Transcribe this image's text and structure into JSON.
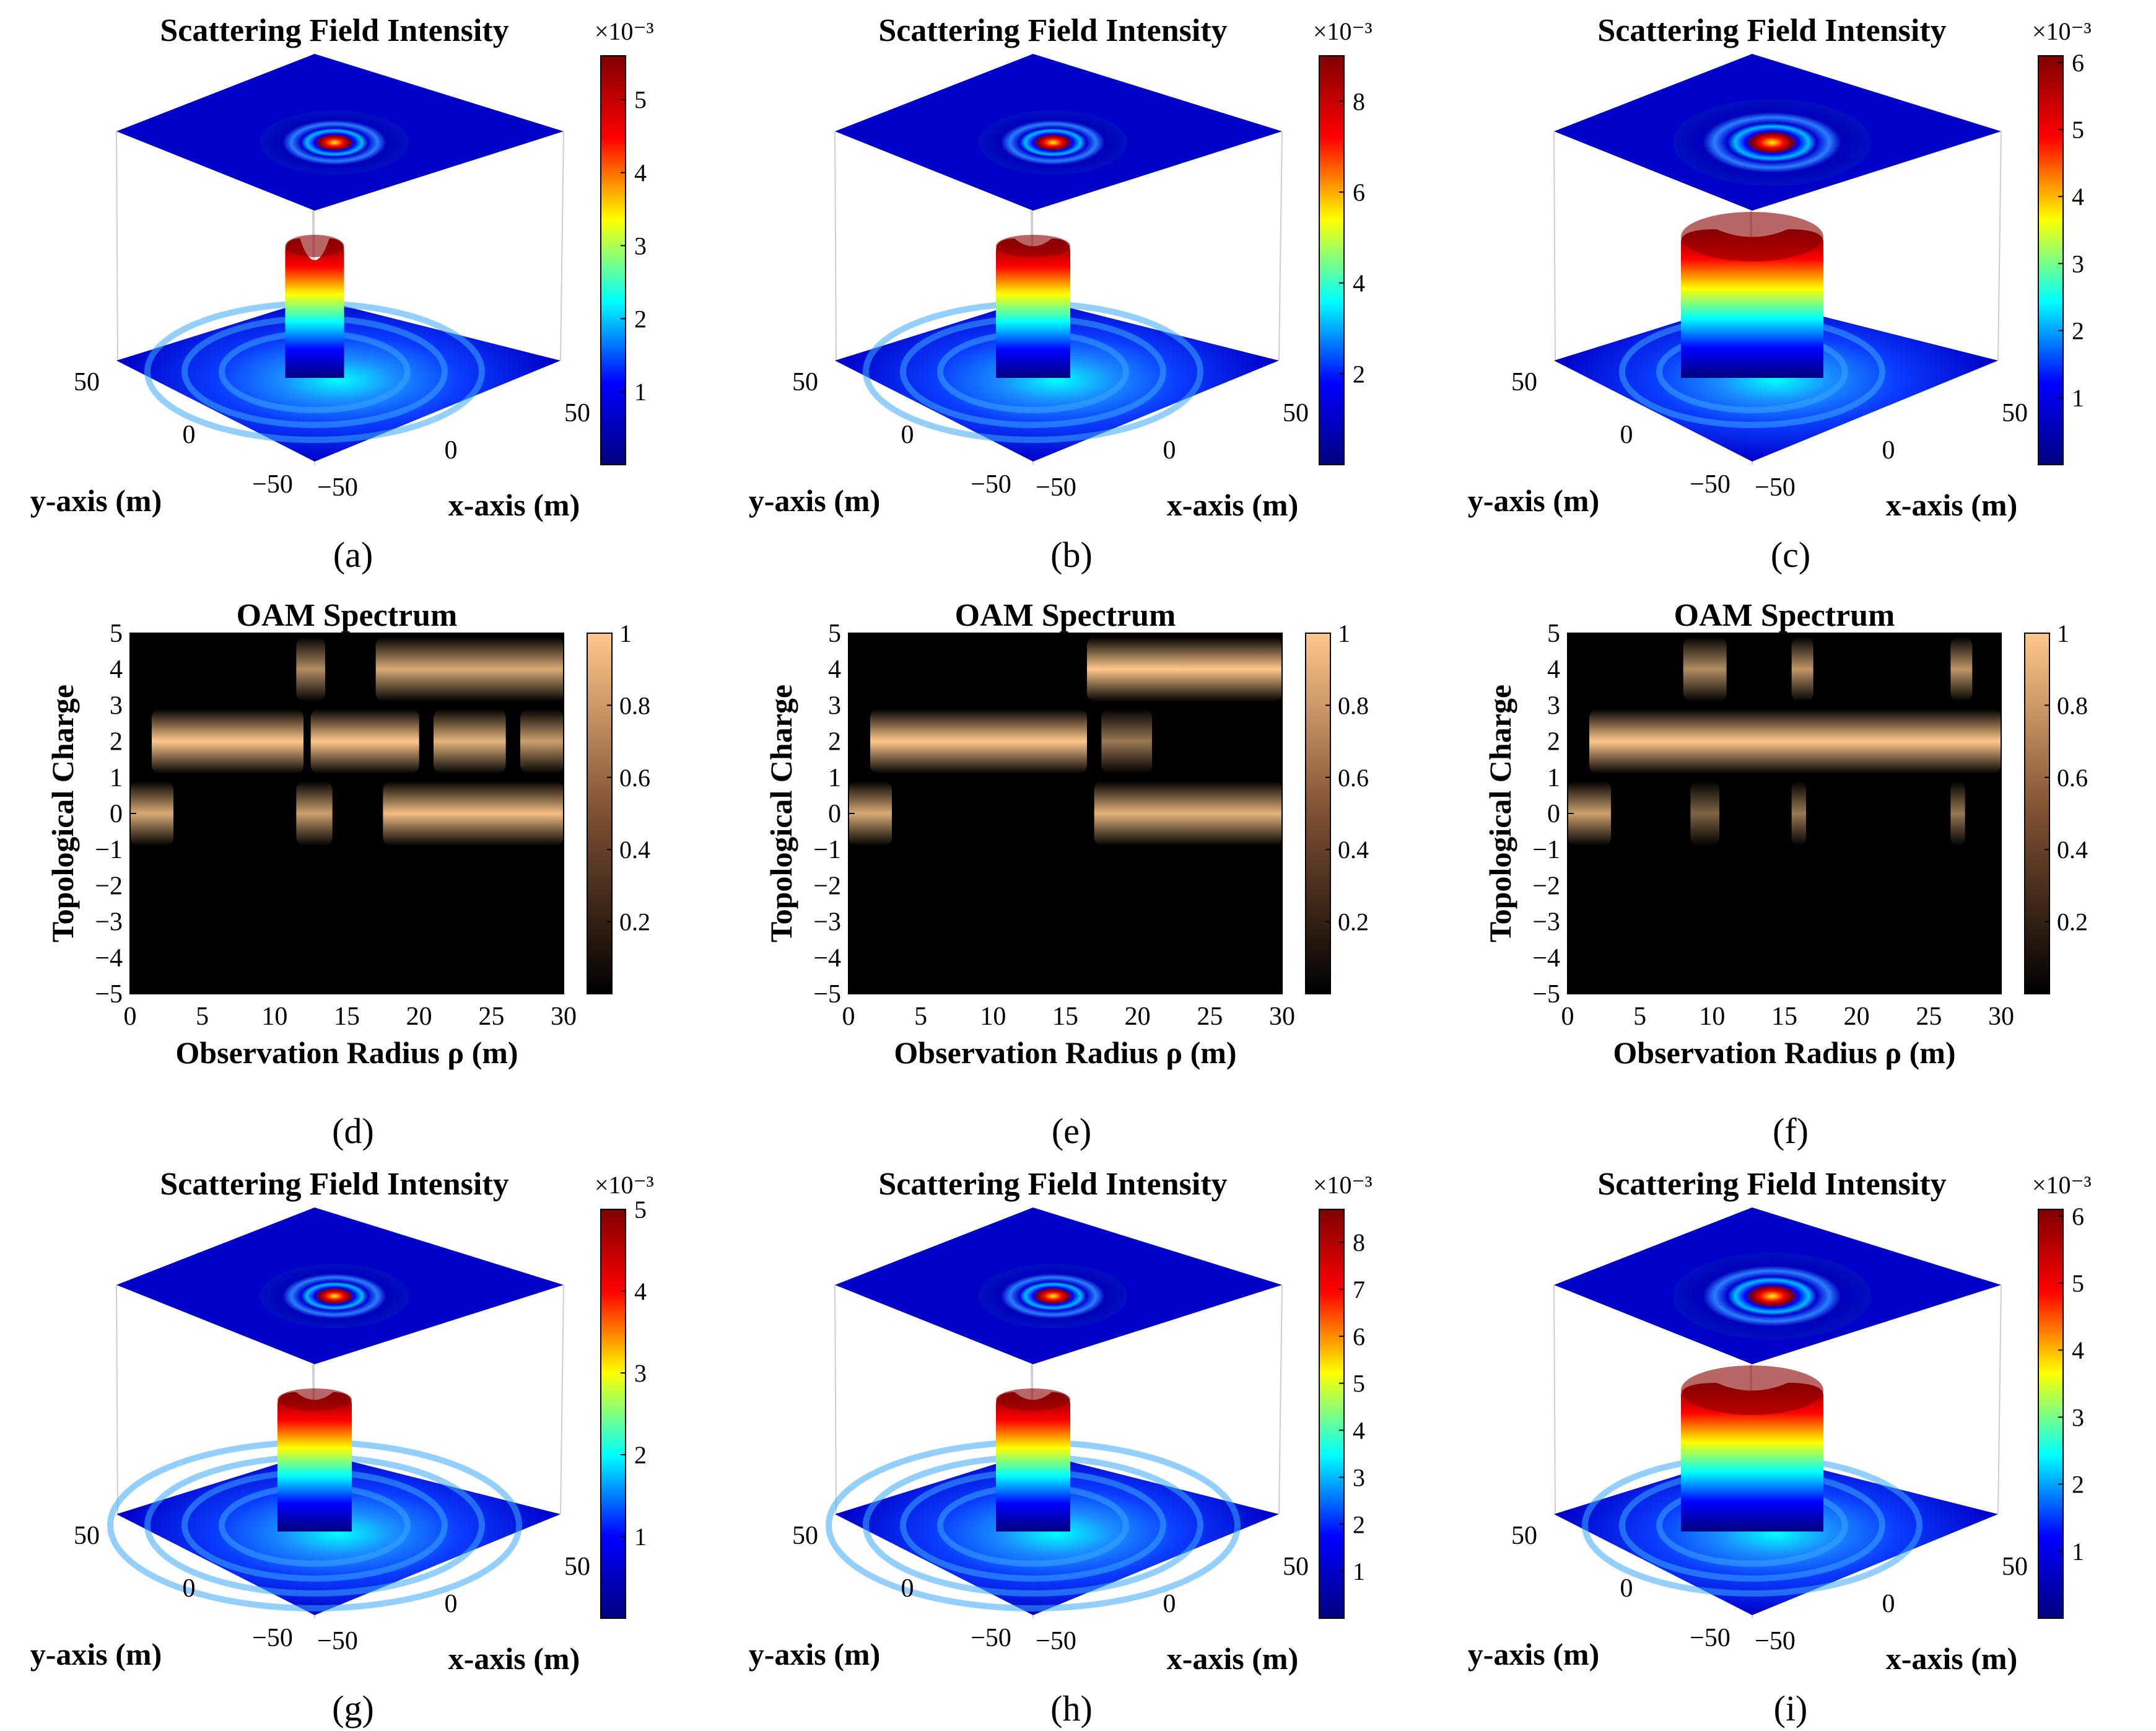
{
  "colors": {
    "jet": [
      "#00007f",
      "#0000ff",
      "#00ffff",
      "#ffff00",
      "#ff0000",
      "#7f0000"
    ],
    "copper": [
      "#000000",
      "#7f5032",
      "#ffc88a"
    ]
  },
  "chart_data": [
    {
      "type": "surface",
      "label": "(a)",
      "title": "Scattering Field Intensity",
      "colorbar": {
        "multiplier": "×10⁻³",
        "ticks": [
          "1",
          "2",
          "3",
          "4",
          "5"
        ],
        "max": 5.6
      },
      "xlabel": "x-axis (m)",
      "ylabel": "y-axis (m)",
      "x_ticks": [
        "−50",
        "0",
        "50"
      ],
      "y_ticks": [
        "−50",
        "0",
        "50"
      ],
      "peak_shape": "double-peak",
      "peak": 5.6,
      "rings": 3
    },
    {
      "type": "surface",
      "label": "(b)",
      "title": "Scattering Field Intensity",
      "colorbar": {
        "multiplier": "×10⁻³",
        "ticks": [
          "2",
          "4",
          "6",
          "8"
        ],
        "max": 9.0
      },
      "xlabel": "x-axis (m)",
      "ylabel": "y-axis (m)",
      "x_ticks": [
        "−50",
        "0",
        "50"
      ],
      "y_ticks": [
        "−50",
        "0",
        "50"
      ],
      "peak_shape": "annular",
      "peak": 9.0,
      "rings": 3
    },
    {
      "type": "surface",
      "label": "(c)",
      "title": "Scattering Field Intensity",
      "colorbar": {
        "multiplier": "×10⁻³",
        "ticks": [
          "1",
          "2",
          "3",
          "4",
          "5",
          "6"
        ],
        "max": 6.1
      },
      "xlabel": "x-axis (m)",
      "ylabel": "y-axis (m)",
      "x_ticks": [
        "−50",
        "0",
        "50"
      ],
      "y_ticks": [
        "−50",
        "0",
        "50"
      ],
      "peak_shape": "wide-annular",
      "peak": 6.1,
      "rings": 2
    },
    {
      "type": "heatmap",
      "label": "(d)",
      "title": "OAM Spectrum",
      "xlabel": "Observation Radius ρ (m)",
      "ylabel": "Topological Charge",
      "x_ticks": [
        "0",
        "5",
        "10",
        "15",
        "20",
        "25",
        "30"
      ],
      "y_ticks": [
        "5",
        "4",
        "3",
        "2",
        "1",
        "0",
        "−1",
        "−2",
        "−3",
        "−4",
        "−5"
      ],
      "xlim": [
        0,
        30
      ],
      "ylim": [
        -5,
        5
      ],
      "colorbar": {
        "ticks": [
          "0.2",
          "0.4",
          "0.6",
          "0.8",
          "1"
        ],
        "range": [
          0,
          1
        ]
      },
      "bands": [
        {
          "charge": 4,
          "segments": [
            [
              11.5,
              13.5,
              0.7
            ],
            [
              17,
              30,
              0.85
            ]
          ]
        },
        {
          "charge": 2,
          "segments": [
            [
              1.5,
              12,
              1.0
            ],
            [
              12.5,
              20,
              1.0
            ],
            [
              21,
              26,
              0.9
            ],
            [
              27,
              30,
              0.8
            ]
          ]
        },
        {
          "charge": 0,
          "segments": [
            [
              0,
              3,
              0.85
            ],
            [
              11.5,
              14,
              0.8
            ],
            [
              17.5,
              30,
              0.95
            ]
          ]
        }
      ]
    },
    {
      "type": "heatmap",
      "label": "(e)",
      "title": "OAM Spectrum",
      "xlabel": "Observation Radius ρ (m)",
      "ylabel": "Topological Charge",
      "x_ticks": [
        "0",
        "5",
        "10",
        "15",
        "20",
        "25",
        "30"
      ],
      "y_ticks": [
        "5",
        "4",
        "3",
        "2",
        "1",
        "0",
        "−1",
        "−2",
        "−3",
        "−4",
        "−5"
      ],
      "xlim": [
        0,
        30
      ],
      "ylim": [
        -5,
        5
      ],
      "colorbar": {
        "ticks": [
          "0.2",
          "0.4",
          "0.6",
          "0.8",
          "1"
        ],
        "range": [
          0,
          1
        ]
      },
      "bands": [
        {
          "charge": 4,
          "segments": [
            [
              16.5,
              30,
              1.0
            ]
          ]
        },
        {
          "charge": 2,
          "segments": [
            [
              1.5,
              16.5,
              1.0
            ],
            [
              17.5,
              21,
              0.6
            ]
          ]
        },
        {
          "charge": 0,
          "segments": [
            [
              0,
              3,
              0.85
            ],
            [
              17,
              30,
              0.9
            ]
          ]
        }
      ]
    },
    {
      "type": "heatmap",
      "label": "(f)",
      "title": "OAM Spectrum",
      "xlabel": "Observation Radius ρ (m)",
      "ylabel": "Topological Charge",
      "x_ticks": [
        "0",
        "5",
        "10",
        "15",
        "20",
        "25",
        "30"
      ],
      "y_ticks": [
        "5",
        "4",
        "3",
        "2",
        "1",
        "0",
        "−1",
        "−2",
        "−3",
        "−4",
        "−5"
      ],
      "xlim": [
        0,
        30
      ],
      "ylim": [
        -5,
        5
      ],
      "colorbar": {
        "ticks": [
          "0.2",
          "0.4",
          "0.6",
          "0.8",
          "1"
        ],
        "range": [
          0,
          1
        ]
      },
      "bands": [
        {
          "charge": 4,
          "segments": [
            [
              8,
              11,
              0.7
            ],
            [
              15.5,
              17,
              0.75
            ],
            [
              26.5,
              28,
              0.75
            ]
          ]
        },
        {
          "charge": 2,
          "segments": [
            [
              1.5,
              30,
              1.0
            ]
          ]
        },
        {
          "charge": 0,
          "segments": [
            [
              0,
              3,
              0.8
            ],
            [
              8.5,
              10.5,
              0.5
            ],
            [
              15.5,
              16.5,
              0.6
            ],
            [
              26.5,
              27.5,
              0.6
            ]
          ]
        }
      ]
    },
    {
      "type": "surface",
      "label": "(g)",
      "title": "Scattering Field Intensity",
      "colorbar": {
        "multiplier": "×10⁻³",
        "ticks": [
          "1",
          "2",
          "3",
          "4",
          "5"
        ],
        "max": 5.0
      },
      "xlabel": "x-axis (m)",
      "ylabel": "y-axis (m)",
      "x_ticks": [
        "−50",
        "0",
        "50"
      ],
      "y_ticks": [
        "−50",
        "0",
        "50"
      ],
      "peak_shape": "annular",
      "peak": 5.0,
      "rings": 4
    },
    {
      "type": "surface",
      "label": "(h)",
      "title": "Scattering Field Intensity",
      "colorbar": {
        "multiplier": "×10⁻³",
        "ticks": [
          "1",
          "2",
          "3",
          "4",
          "5",
          "6",
          "7",
          "8"
        ],
        "max": 8.7
      },
      "xlabel": "x-axis (m)",
      "ylabel": "y-axis (m)",
      "x_ticks": [
        "−50",
        "0",
        "50"
      ],
      "y_ticks": [
        "−50",
        "0",
        "50"
      ],
      "peak_shape": "annular",
      "peak": 8.7,
      "rings": 4
    },
    {
      "type": "surface",
      "label": "(i)",
      "title": "Scattering Field Intensity",
      "colorbar": {
        "multiplier": "×10⁻³",
        "ticks": [
          "1",
          "2",
          "3",
          "4",
          "5",
          "6"
        ],
        "max": 6.1
      },
      "xlabel": "x-axis (m)",
      "ylabel": "y-axis (m)",
      "x_ticks": [
        "−50",
        "0",
        "50"
      ],
      "y_ticks": [
        "−50",
        "0",
        "50"
      ],
      "peak_shape": "wide-annular",
      "peak": 6.1,
      "rings": 3
    }
  ]
}
